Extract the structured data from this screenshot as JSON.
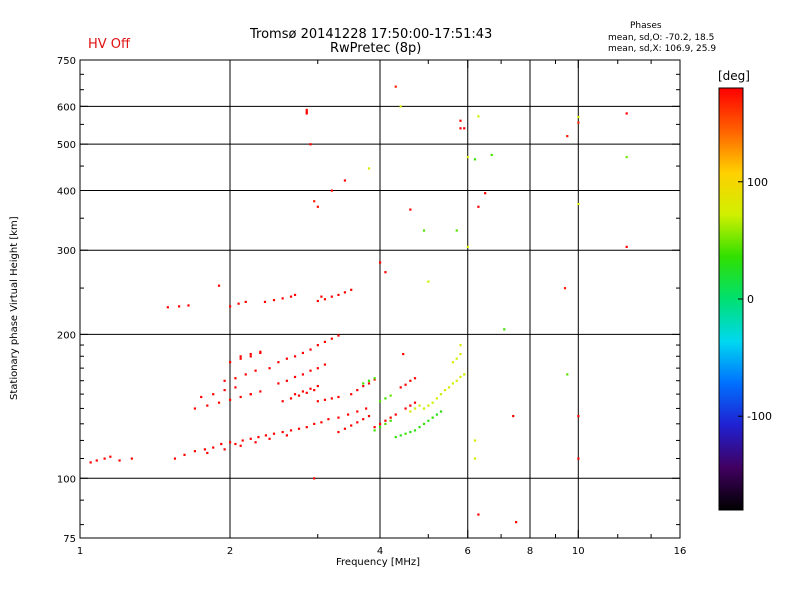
{
  "window": {
    "hv_status": "HV Off"
  },
  "chart_data": {
    "type": "scatter",
    "title": "Tromsø 20141228 17:50:00-17:51:43",
    "subtitle": "RwPretec (8p)",
    "phases": {
      "heading": "Phases",
      "line_o": "mean, sd,O: -70.2, 18.5",
      "line_x": "mean, sd,X: 106.9, 25.9"
    },
    "xlabel": "Frequency [MHz]",
    "ylabel": "Stationary phase Virtual Height [km]",
    "xscale": "log",
    "yscale": "log",
    "xlim": [
      1,
      16
    ],
    "ylim": [
      75,
      750
    ],
    "xticks": [
      1,
      2,
      4,
      6,
      8,
      10,
      16
    ],
    "xtick_labels": [
      "1",
      "2",
      "4",
      "6",
      "8",
      "10",
      "16"
    ],
    "x_gridlines": [
      2,
      4,
      6,
      8,
      10
    ],
    "x_minor_ticks": [
      3,
      5,
      7,
      9,
      12,
      14
    ],
    "yticks": [
      75,
      100,
      200,
      300,
      400,
      500,
      600,
      750
    ],
    "ytick_labels": [
      "75",
      "100",
      "200",
      "300",
      "400",
      "500",
      "600",
      "750"
    ],
    "y_gridlines": [
      100,
      200,
      300,
      400,
      500,
      600
    ],
    "y_minor_ticks": [
      80,
      90,
      110,
      120,
      130,
      140,
      150,
      160,
      170,
      180,
      190,
      250,
      350,
      450,
      550,
      650,
      700
    ],
    "grid": true,
    "colorbar": {
      "unit": "[deg]",
      "range": [
        -180,
        180
      ],
      "ticks": [
        100,
        0,
        -100
      ],
      "tick_labels": [
        "100",
        "0",
        "-100"
      ],
      "colors": [
        "#000000",
        "#400060",
        "#2020d0",
        "#0070ff",
        "#00d8f0",
        "#00e070",
        "#30e000",
        "#d0f000",
        "#ffd000",
        "#ff6000",
        "#ff0000"
      ]
    },
    "series": [
      {
        "points": [
          [
            1.05,
            108,
            200
          ],
          [
            1.08,
            109,
            210
          ],
          [
            1.12,
            110,
            195
          ],
          [
            1.15,
            111,
            205
          ],
          [
            1.2,
            109,
            200
          ],
          [
            1.27,
            110,
            210
          ],
          [
            1.55,
            110,
            195
          ],
          [
            1.62,
            112,
            200
          ],
          [
            1.7,
            114,
            190
          ],
          [
            1.78,
            115,
            205
          ],
          [
            1.85,
            116,
            198
          ],
          [
            1.92,
            118,
            210
          ],
          [
            2.0,
            119,
            195
          ],
          [
            2.05,
            118,
            205
          ],
          [
            2.12,
            120,
            190
          ],
          [
            2.2,
            121,
            200
          ],
          [
            2.28,
            122,
            210
          ],
          [
            2.36,
            123,
            195
          ],
          [
            2.45,
            124,
            205
          ],
          [
            2.55,
            125,
            190
          ],
          [
            2.65,
            126,
            200
          ],
          [
            2.75,
            127,
            210
          ],
          [
            2.85,
            128,
            195
          ],
          [
            2.95,
            130,
            205
          ],
          [
            3.05,
            131,
            190
          ],
          [
            3.15,
            133,
            200
          ],
          [
            3.3,
            134,
            210
          ],
          [
            3.45,
            136,
            195
          ],
          [
            3.6,
            138,
            205
          ],
          [
            3.75,
            140,
            200
          ],
          [
            1.8,
            113,
            210
          ],
          [
            1.95,
            115,
            200
          ],
          [
            2.1,
            117,
            195
          ],
          [
            2.25,
            119,
            205
          ],
          [
            2.4,
            121,
            200
          ],
          [
            2.6,
            123,
            210
          ],
          [
            1.5,
            228,
            205
          ],
          [
            1.58,
            229,
            195
          ],
          [
            1.65,
            230,
            210
          ],
          [
            2.0,
            229,
            200
          ],
          [
            2.08,
            232,
            205
          ],
          [
            2.15,
            234,
            195
          ],
          [
            2.35,
            234,
            200
          ],
          [
            2.45,
            236,
            210
          ],
          [
            2.55,
            238,
            195
          ],
          [
            2.65,
            240,
            205
          ],
          [
            2.7,
            242,
            200
          ],
          [
            1.95,
            160,
            195
          ],
          [
            2.05,
            162,
            210
          ],
          [
            2.15,
            165,
            200
          ],
          [
            2.25,
            168,
            205
          ],
          [
            2.4,
            170,
            195
          ],
          [
            2.5,
            158,
            200
          ],
          [
            2.6,
            160,
            210
          ],
          [
            2.7,
            163,
            195
          ],
          [
            2.8,
            165,
            205
          ],
          [
            2.9,
            168,
            200
          ],
          [
            3.0,
            170,
            195
          ],
          [
            3.1,
            173,
            205
          ],
          [
            2.55,
            145,
            200
          ],
          [
            2.65,
            147,
            210
          ],
          [
            2.75,
            149,
            195
          ],
          [
            2.85,
            151,
            205
          ],
          [
            2.95,
            153,
            200
          ],
          [
            3.5,
            150,
            195
          ],
          [
            3.6,
            153,
            205
          ],
          [
            3.7,
            156,
            200
          ],
          [
            3.8,
            158,
            210
          ],
          [
            3.9,
            161,
            195
          ],
          [
            2.2,
            150,
            200
          ],
          [
            2.3,
            152,
            195
          ],
          [
            2.1,
            180,
            205
          ],
          [
            2.2,
            182,
            200
          ],
          [
            2.3,
            184,
            210
          ],
          [
            4.4,
            155,
            200
          ],
          [
            4.5,
            157,
            195
          ],
          [
            4.6,
            160,
            205
          ],
          [
            4.7,
            162,
            200
          ],
          [
            3.0,
            145,
            195
          ],
          [
            3.1,
            146,
            205
          ],
          [
            3.2,
            147,
            200
          ],
          [
            3.3,
            148,
            210
          ],
          [
            2.85,
            585,
            205
          ],
          [
            2.85,
            580,
            195
          ],
          [
            4.6,
            365,
            200
          ],
          [
            2.9,
            500,
            205
          ],
          [
            4.45,
            182,
            200
          ],
          [
            3.4,
            420,
            195
          ]
        ]
      },
      {
        "points": [
          [
            1.7,
            140,
            250
          ],
          [
            1.8,
            142,
            255
          ],
          [
            1.9,
            144,
            245
          ],
          [
            2.0,
            146,
            252
          ],
          [
            2.1,
            148,
            248
          ],
          [
            2.2,
            150,
            255
          ],
          [
            1.75,
            148,
            250
          ],
          [
            1.85,
            150,
            245
          ],
          [
            1.95,
            153,
            255
          ],
          [
            2.05,
            155,
            250
          ],
          [
            2.0,
            175,
            248
          ],
          [
            2.1,
            178,
            252
          ],
          [
            2.2,
            180,
            246
          ],
          [
            2.3,
            183,
            250
          ],
          [
            2.5,
            175,
            255
          ],
          [
            2.6,
            178,
            248
          ],
          [
            2.7,
            180,
            252
          ],
          [
            2.8,
            183,
            245
          ],
          [
            2.9,
            186,
            250
          ],
          [
            3.0,
            190,
            252
          ],
          [
            3.1,
            193,
            248
          ],
          [
            3.2,
            196,
            255
          ],
          [
            3.3,
            199,
            250
          ],
          [
            2.7,
            150,
            245
          ],
          [
            2.8,
            152,
            255
          ],
          [
            2.9,
            154,
            250
          ],
          [
            3.0,
            156,
            248
          ],
          [
            3.0,
            235,
            250
          ],
          [
            3.1,
            237,
            245
          ],
          [
            3.2,
            240,
            252
          ],
          [
            3.3,
            242,
            248
          ],
          [
            3.4,
            245,
            255
          ],
          [
            3.5,
            248,
            250
          ],
          [
            3.3,
            125,
            252
          ],
          [
            3.4,
            127,
            248
          ],
          [
            3.5,
            129,
            255
          ],
          [
            3.6,
            131,
            250
          ],
          [
            3.7,
            133,
            245
          ],
          [
            3.8,
            135,
            252
          ],
          [
            3.9,
            128,
            250
          ],
          [
            4.0,
            130,
            255
          ],
          [
            4.1,
            132,
            248
          ],
          [
            4.2,
            134,
            252
          ],
          [
            4.3,
            136,
            245
          ],
          [
            4.5,
            140,
            250
          ],
          [
            4.6,
            142,
            255
          ],
          [
            4.7,
            144,
            248
          ],
          [
            5.8,
            560,
            250
          ],
          [
            5.9,
            540,
            248
          ],
          [
            6.3,
            370,
            255
          ],
          [
            6.5,
            395,
            250
          ],
          [
            7.5,
            81,
            252
          ],
          [
            10.0,
            110,
            248
          ],
          [
            12.5,
            580,
            250
          ],
          [
            12.5,
            305,
            245
          ],
          [
            3.2,
            400,
            250
          ],
          [
            3.05,
            240,
            255
          ],
          [
            10.0,
            135,
            250
          ],
          [
            7.4,
            135,
            248
          ],
          [
            5.8,
            540,
            252
          ],
          [
            6.3,
            84,
            250
          ],
          [
            4.1,
            270,
            245
          ],
          [
            4.0,
            283,
            255
          ],
          [
            1.9,
            253,
            250
          ],
          [
            2.95,
            100,
            248
          ]
        ]
      },
      {
        "points": [
          [
            4.3,
            122,
            35
          ],
          [
            4.4,
            123,
            30
          ],
          [
            4.5,
            124,
            38
          ],
          [
            4.6,
            125,
            28
          ],
          [
            4.7,
            126,
            35
          ],
          [
            4.8,
            128,
            32
          ],
          [
            4.9,
            130,
            38
          ],
          [
            5.0,
            132,
            30
          ],
          [
            5.1,
            134,
            35
          ],
          [
            5.2,
            136,
            28
          ],
          [
            5.3,
            138,
            32
          ],
          [
            3.9,
            126,
            40
          ],
          [
            4.0,
            128,
            36
          ],
          [
            4.1,
            130,
            42
          ],
          [
            4.2,
            132,
            38
          ],
          [
            3.7,
            158,
            40
          ],
          [
            3.8,
            160,
            35
          ],
          [
            3.9,
            162,
            42
          ],
          [
            4.0,
            145,
            45
          ],
          [
            4.1,
            147,
            40
          ],
          [
            4.2,
            149,
            48
          ],
          [
            4.9,
            330,
            42
          ],
          [
            5.7,
            330,
            45
          ],
          [
            6.2,
            465,
            38
          ],
          [
            6.7,
            475,
            42
          ],
          [
            7.1,
            205,
            40
          ],
          [
            9.5,
            165,
            45
          ],
          [
            12.5,
            470,
            50
          ]
        ]
      },
      {
        "points": [
          [
            4.9,
            140,
            75
          ],
          [
            5.0,
            142,
            80
          ],
          [
            5.1,
            144,
            72
          ],
          [
            5.2,
            147,
            78
          ],
          [
            5.3,
            150,
            70
          ],
          [
            5.4,
            153,
            82
          ],
          [
            5.5,
            155,
            76
          ],
          [
            5.6,
            158,
            72
          ],
          [
            5.7,
            160,
            80
          ],
          [
            5.8,
            163,
            75
          ],
          [
            5.9,
            165,
            70
          ],
          [
            5.6,
            175,
            78
          ],
          [
            5.7,
            178,
            72
          ],
          [
            5.8,
            182,
            80
          ],
          [
            5.8,
            190,
            75
          ],
          [
            4.6,
            138,
            80
          ],
          [
            4.7,
            140,
            75
          ],
          [
            4.8,
            142,
            72
          ],
          [
            6.0,
            470,
            80
          ],
          [
            6.0,
            305,
            75
          ],
          [
            6.3,
            572,
            72
          ],
          [
            10.0,
            570,
            80
          ],
          [
            10.0,
            375,
            75
          ],
          [
            4.4,
            600,
            78
          ],
          [
            6.2,
            110,
            75
          ],
          [
            6.2,
            120,
            80
          ],
          [
            5.0,
            258,
            72
          ],
          [
            3.8,
            445,
            78
          ]
        ]
      },
      {
        "points": [
          [
            2.95,
            380,
            170
          ],
          [
            3.0,
            370,
            175
          ],
          [
            9.4,
            250,
            170
          ],
          [
            10.0,
            555,
            165
          ],
          [
            9.5,
            520,
            172
          ],
          [
            4.3,
            660,
            168
          ],
          [
            2.85,
            590,
            175
          ]
        ]
      }
    ]
  }
}
